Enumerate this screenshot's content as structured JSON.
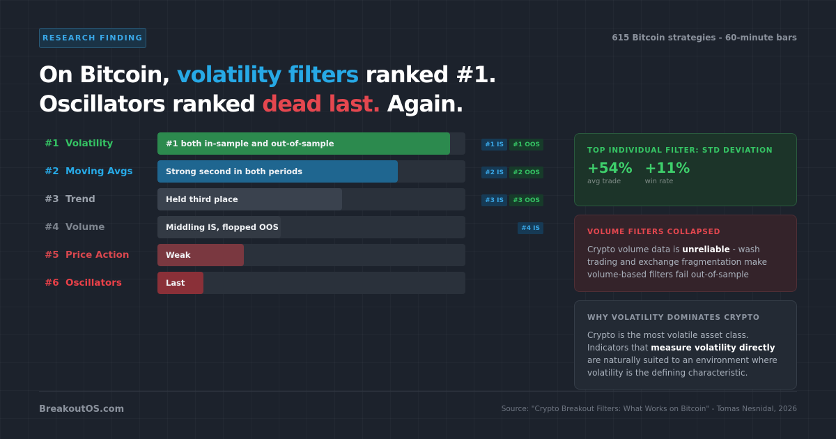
{
  "badge": "RESEARCH FINDING",
  "subtitle": "615 Bitcoin strategies - 60-minute bars",
  "headline": {
    "l1_a": "On Bitcoin, ",
    "l1_b": "volatility filters",
    "l1_c": " ranked #1.",
    "l2_a": "Oscillators ranked ",
    "l2_b": "dead last.",
    "l2_c": " Again."
  },
  "chart_data": {
    "type": "bar",
    "orientation": "horizontal",
    "categories": [
      "Volatility",
      "Moving Avgs",
      "Trend",
      "Volume",
      "Price Action",
      "Oscillators"
    ],
    "ranks": [
      "#1",
      "#2",
      "#3",
      "#4",
      "#5",
      "#6"
    ],
    "values": [
      0.95,
      0.78,
      0.6,
      0.4,
      0.28,
      0.15
    ],
    "bar_labels": [
      "#1 both in-sample and out-of-sample",
      "Strong second in both periods",
      "Held third place",
      "Middling IS, flopped OOS",
      "Weak",
      "Last"
    ],
    "is_tags": [
      "#1 IS",
      "#2 IS",
      "#3 IS",
      "#4 IS",
      "",
      ""
    ],
    "oos_tags": [
      "#1 OOS",
      "#2 OOS",
      "#3 OOS",
      "",
      "",
      ""
    ],
    "colors": [
      "#2c8a4e",
      "#1f6690",
      "#3a424e",
      "#333a44",
      "#7a3840",
      "#8a3038"
    ],
    "text_colors": [
      "#35c464",
      "#27a9e6",
      "#9aa1ab",
      "#7d848e",
      "#d8474e",
      "#ea4048"
    ]
  },
  "cards": {
    "green": {
      "title": "TOP INDIVIDUAL FILTER: STD DEVIATION",
      "stat1_val": "+54%",
      "stat1_lbl": "avg trade",
      "stat2_val": "+11%",
      "stat2_lbl": "win rate"
    },
    "red": {
      "title": "VOLUME FILTERS COLLAPSED",
      "p1": "Crypto volume data is ",
      "bold": "unreliable",
      "p2": " - wash trading and exchange fragmentation make volume-based filters fail out-of-sample"
    },
    "gray": {
      "title": "WHY VOLATILITY DOMINATES CRYPTO",
      "p1": "Crypto is the most volatile asset class. Indicators that ",
      "bold": "measure volatility directly",
      "p2": " are naturally suited to an environment where volatility is the defining characteristic."
    }
  },
  "footer": {
    "brand": "BreakoutOS.com",
    "source": "Source: \"Crypto Breakout Filters: What Works on Bitcoin\" - Tomas Nesnidal, 2026"
  }
}
